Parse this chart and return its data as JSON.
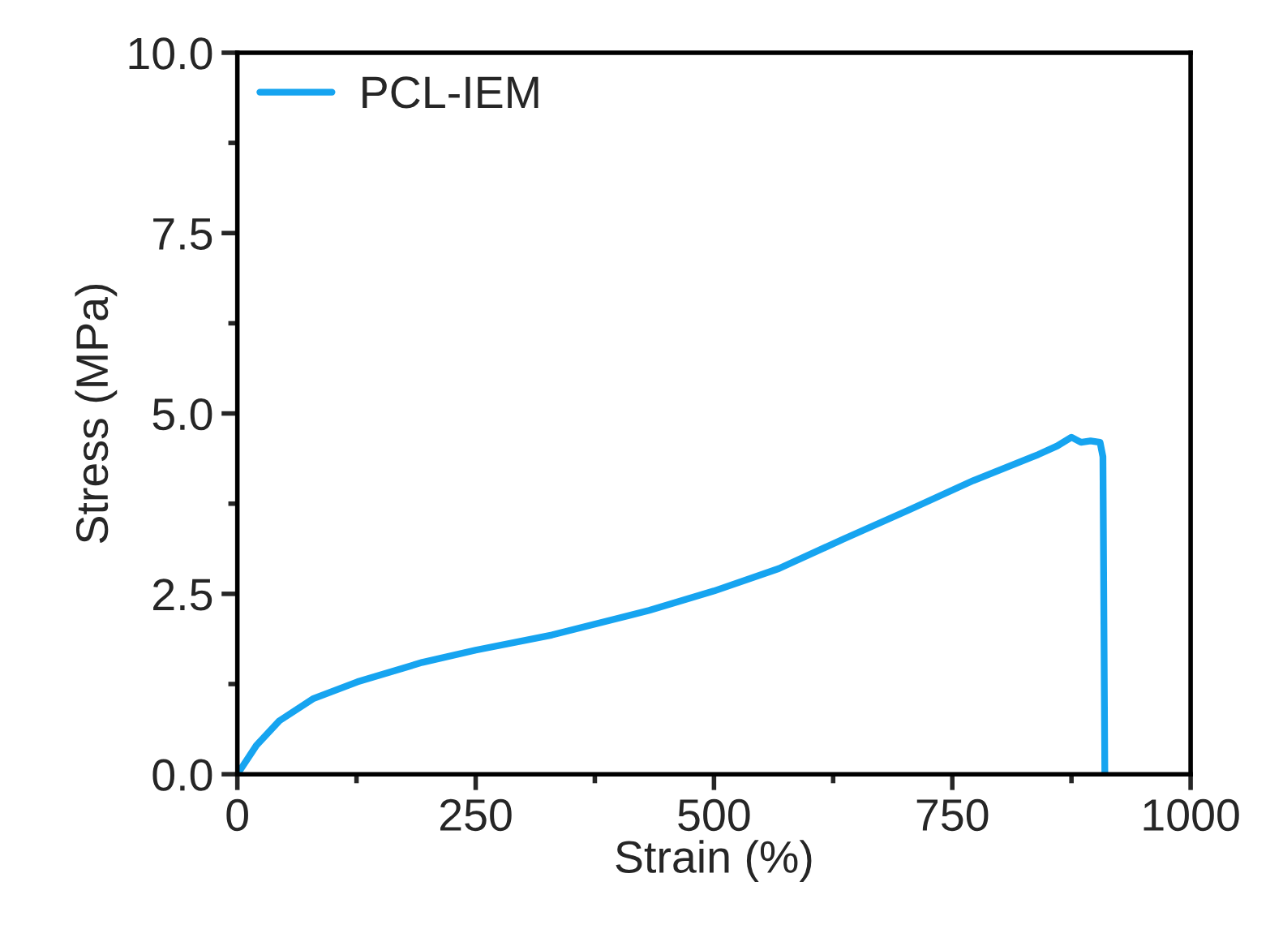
{
  "chart_data": {
    "type": "line",
    "xlabel": "Strain (%)",
    "ylabel": "Stress (MPa)",
    "xlim": [
      0,
      1000
    ],
    "xticks": [
      0,
      250,
      500,
      750,
      1000
    ],
    "ylim": [
      0,
      10
    ],
    "yticks": [
      {
        "value": 0,
        "label": "0.0"
      },
      {
        "value": 2.5,
        "label": "2.5"
      },
      {
        "value": 5,
        "label": "5.0"
      },
      {
        "value": 7.5,
        "label": "7.5"
      },
      {
        "value": 10,
        "label": "10.0"
      }
    ],
    "grid": false,
    "legend": "top left",
    "marker": "none",
    "line_style": "solid",
    "series": [
      {
        "name": "PCL-IEM",
        "color": "#16a4f0",
        "x": [
          0,
          20,
          44,
          80,
          126,
          194,
          250,
          330,
          432,
          500,
          568,
          636,
          704,
          772,
          840,
          860,
          875,
          885,
          895,
          905,
          908,
          910
        ],
        "values": [
          0,
          0.4,
          0.74,
          1.05,
          1.28,
          1.55,
          1.72,
          1.93,
          2.27,
          2.54,
          2.85,
          3.26,
          3.66,
          4.07,
          4.43,
          4.55,
          4.67,
          4.6,
          4.62,
          4.6,
          4.4,
          0
        ]
      }
    ]
  }
}
